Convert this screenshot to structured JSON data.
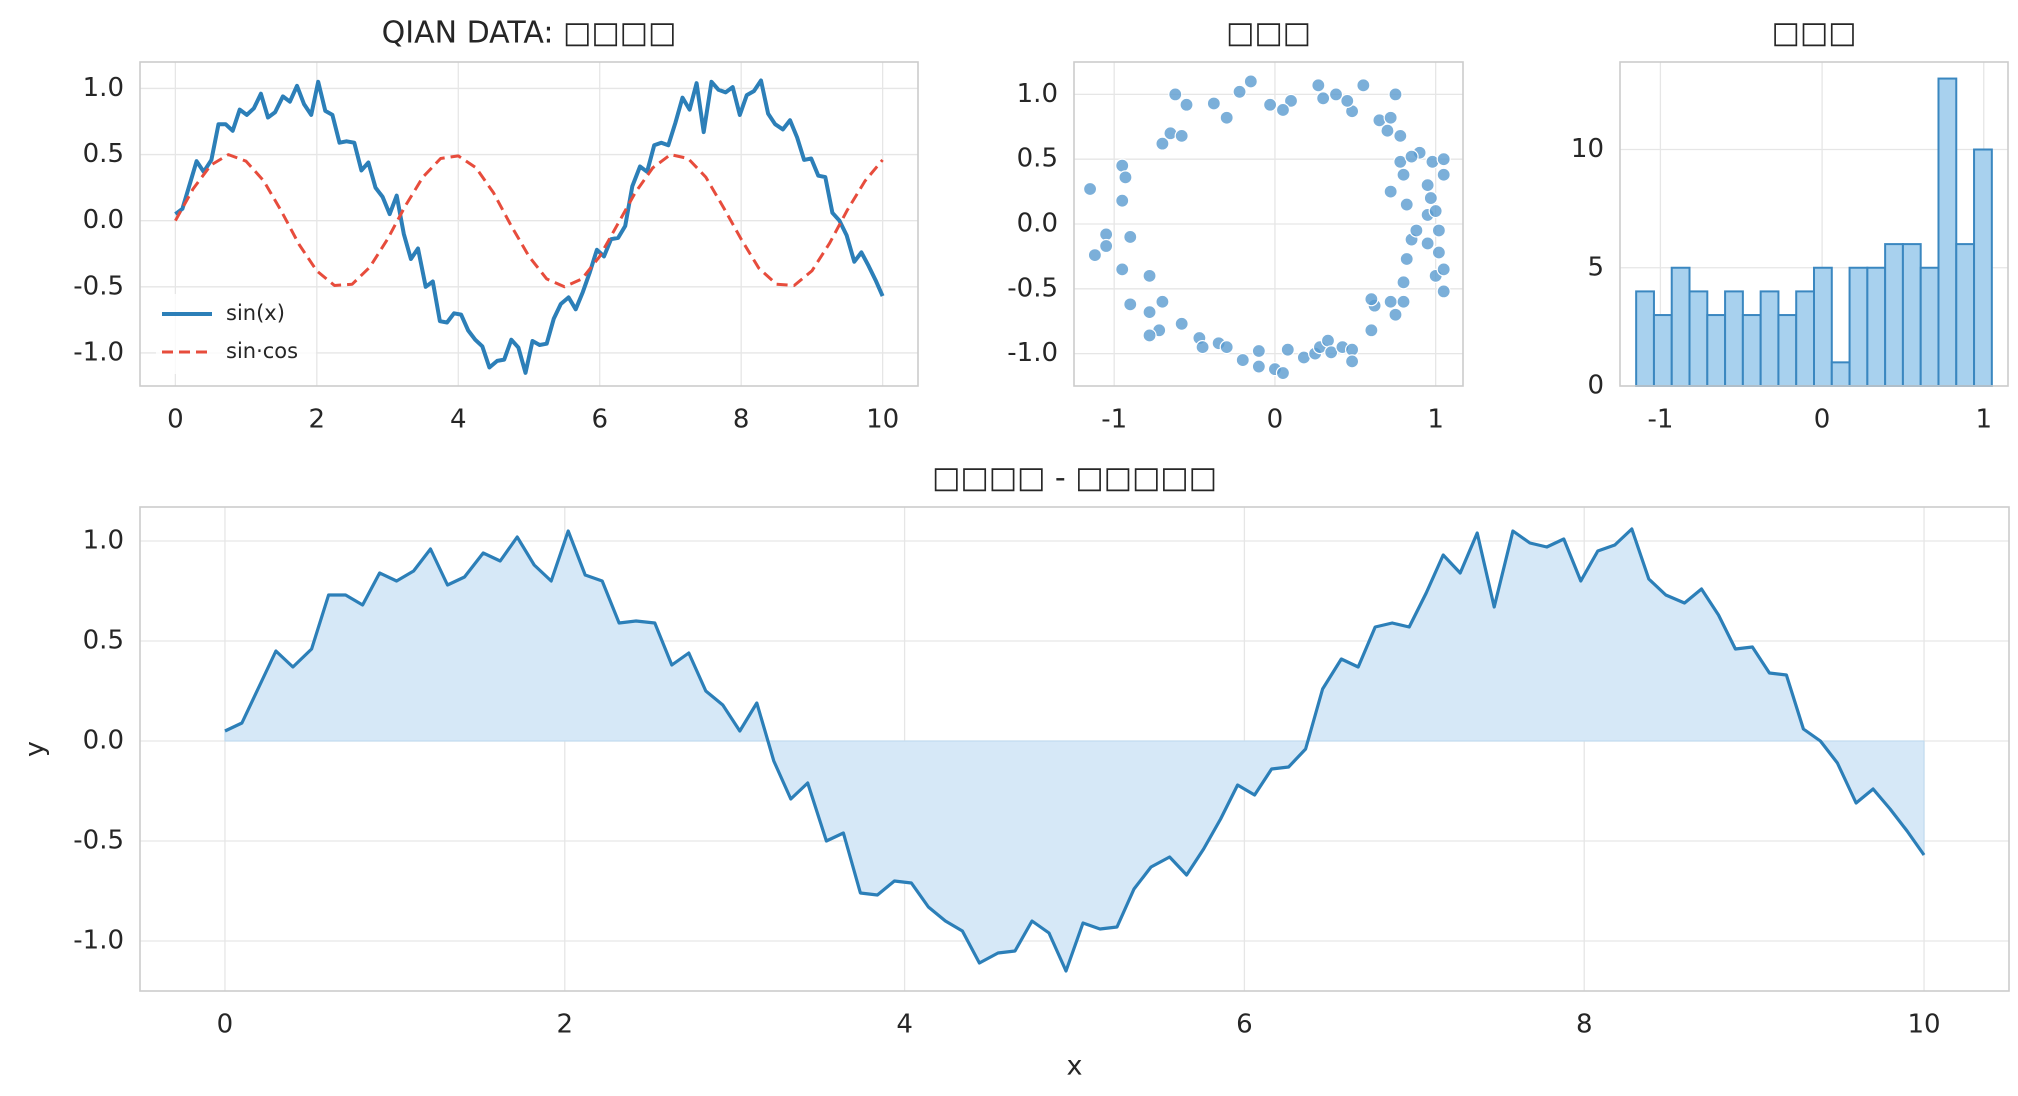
{
  "chart_data": [
    {
      "type": "line",
      "title": "QIAN DATA: □□□□",
      "legend": "lower left",
      "x": [
        0,
        0.1,
        0.2,
        0.3,
        0.4,
        0.51,
        0.61,
        0.71,
        0.81,
        0.91,
        1.01,
        1.11,
        1.21,
        1.31,
        1.41,
        1.52,
        1.62,
        1.72,
        1.82,
        1.92,
        2.02,
        2.12,
        2.22,
        2.32,
        2.42,
        2.53,
        2.63,
        2.73,
        2.83,
        2.93,
        3.03,
        3.13,
        3.23,
        3.33,
        3.43,
        3.54,
        3.64,
        3.74,
        3.84,
        3.94,
        4.04,
        4.14,
        4.24,
        4.34,
        4.44,
        4.55,
        4.65,
        4.75,
        4.85,
        4.95,
        5.05,
        5.15,
        5.25,
        5.35,
        5.45,
        5.56,
        5.66,
        5.76,
        5.86,
        5.96,
        6.06,
        6.16,
        6.26,
        6.36,
        6.46,
        6.57,
        6.67,
        6.77,
        6.87,
        6.97,
        7.07,
        7.17,
        7.27,
        7.37,
        7.47,
        7.58,
        7.68,
        7.78,
        7.88,
        7.98,
        8.08,
        8.18,
        8.28,
        8.38,
        8.48,
        8.59,
        8.69,
        8.79,
        8.89,
        8.99,
        9.09,
        9.19,
        9.29,
        9.39,
        9.49,
        9.6,
        9.7,
        9.8,
        9.9,
        10.0
      ],
      "series": [
        {
          "name": "sin(x)",
          "color": "#2c7fb8",
          "style": "solid",
          "values": [
            0.05,
            0.09,
            0.27,
            0.45,
            0.37,
            0.46,
            0.73,
            0.73,
            0.68,
            0.84,
            0.8,
            0.85,
            0.96,
            0.78,
            0.82,
            0.94,
            0.9,
            1.02,
            0.88,
            0.8,
            1.05,
            0.83,
            0.8,
            0.59,
            0.6,
            0.59,
            0.38,
            0.44,
            0.25,
            0.18,
            0.05,
            0.19,
            -0.1,
            -0.29,
            -0.21,
            -0.5,
            -0.46,
            -0.76,
            -0.77,
            -0.7,
            -0.71,
            -0.83,
            -0.9,
            -0.95,
            -1.11,
            -1.06,
            -1.05,
            -0.9,
            -0.96,
            -1.15,
            -0.91,
            -0.94,
            -0.93,
            -0.74,
            -0.63,
            -0.58,
            -0.67,
            -0.54,
            -0.39,
            -0.22,
            -0.27,
            -0.14,
            -0.13,
            -0.04,
            0.26,
            0.41,
            0.37,
            0.57,
            0.59,
            0.57,
            0.74,
            0.93,
            0.84,
            1.04,
            0.67,
            1.05,
            0.99,
            0.97,
            1.01,
            0.8,
            0.95,
            0.98,
            1.06,
            0.81,
            0.73,
            0.69,
            0.76,
            0.63,
            0.46,
            0.47,
            0.34,
            0.33,
            0.06,
            0.0,
            -0.11,
            -0.31,
            -0.24,
            -0.34,
            -0.45,
            -0.57
          ]
        },
        {
          "name": "sin·cos",
          "color": "#e74c3c",
          "style": "dashed",
          "x": [
            0,
            0.25,
            0.5,
            0.75,
            1,
            1.25,
            1.5,
            1.75,
            2,
            2.25,
            2.5,
            2.75,
            3,
            3.25,
            3.5,
            3.75,
            4,
            4.25,
            4.5,
            4.75,
            5,
            5.25,
            5.5,
            5.75,
            6,
            6.25,
            6.5,
            6.75,
            7,
            7.25,
            7.5,
            7.75,
            8,
            8.25,
            8.5,
            8.75,
            9,
            9.25,
            9.5,
            9.75,
            10
          ],
          "values": [
            0,
            0.24,
            0.42,
            0.5,
            0.45,
            0.3,
            0.07,
            -0.18,
            -0.38,
            -0.49,
            -0.48,
            -0.35,
            -0.14,
            0.11,
            0.33,
            0.47,
            0.49,
            0.4,
            0.21,
            -0.04,
            -0.27,
            -0.44,
            -0.5,
            -0.44,
            -0.27,
            -0.03,
            0.21,
            0.4,
            0.5,
            0.47,
            0.33,
            0.1,
            -0.14,
            -0.36,
            -0.48,
            -0.49,
            -0.38,
            -0.17,
            0.08,
            0.3,
            0.46
          ]
        }
      ],
      "xlim": [
        -0.5,
        10.5
      ],
      "xticks": [
        0,
        2,
        4,
        6,
        8,
        10
      ],
      "ylim": [
        -1.25,
        1.2
      ],
      "yticks": [
        {
          "value": -1,
          "label": "-1.0"
        },
        {
          "value": -0.5,
          "label": "-0.5"
        },
        {
          "value": 0,
          "label": "0.0"
        },
        {
          "value": 0.5,
          "label": "0.5"
        },
        {
          "value": 1,
          "label": "1.0"
        }
      ],
      "grid": true
    },
    {
      "type": "scatter",
      "title": "□□□",
      "color": "#5a9bd0",
      "x": [
        -1.15,
        -0.95,
        -0.93,
        -0.95,
        -1.05,
        -1.05,
        -1.12,
        -0.9,
        -0.95,
        -0.9,
        -0.78,
        -0.78,
        -0.7,
        -0.72,
        -0.78,
        -0.58,
        -0.47,
        -0.45,
        -0.35,
        -0.3,
        -0.2,
        -0.1,
        -0.1,
        0,
        0.05,
        0.08,
        0.18,
        0.25,
        0.28,
        0.33,
        0.35,
        0.42,
        0.48,
        0.48,
        0.6,
        0.62,
        0.6,
        0.72,
        0.75,
        0.8,
        0.8,
        0.82,
        0.85,
        0.88,
        0.95,
        1.02,
        1.0,
        1.05,
        1.05,
        1.02,
        0.95,
        0.97,
        1.0,
        0.82,
        0.8,
        0.72,
        0.78,
        0.78,
        0.7,
        0.65,
        0.72,
        0.75,
        0.55,
        0.48,
        0.45,
        0.38,
        0.3,
        0.27,
        0.1,
        0.05,
        -0.03,
        -0.15,
        -0.22,
        -0.3,
        -0.38,
        -0.55,
        -0.62,
        -0.65,
        -0.58,
        -0.7,
        0.9,
        0.98,
        1.05,
        1.05,
        0.85,
        0.95
      ],
      "values": [
        0.27,
        0.45,
        0.36,
        0.18,
        -0.08,
        -0.17,
        -0.24,
        -0.1,
        -0.35,
        -0.62,
        -0.4,
        -0.68,
        -0.6,
        -0.82,
        -0.86,
        -0.77,
        -0.88,
        -0.95,
        -0.92,
        -0.95,
        -1.05,
        -0.98,
        -1.1,
        -1.12,
        -1.15,
        -0.97,
        -1.03,
        -1.0,
        -0.95,
        -0.9,
        -0.99,
        -0.95,
        -0.97,
        -1.06,
        -0.82,
        -0.63,
        -0.58,
        -0.6,
        -0.7,
        -0.6,
        -0.45,
        -0.27,
        -0.12,
        -0.05,
        -0.15,
        -0.05,
        -0.4,
        -0.35,
        -0.52,
        -0.22,
        0.07,
        0.2,
        0.1,
        0.15,
        0.38,
        0.25,
        0.48,
        0.68,
        0.72,
        0.8,
        0.82,
        1.0,
        1.07,
        0.87,
        0.95,
        1.0,
        0.97,
        1.07,
        0.95,
        0.88,
        0.92,
        1.1,
        1.02,
        0.82,
        0.93,
        0.92,
        1.0,
        0.7,
        0.68,
        0.62,
        0.55,
        0.48,
        0.38,
        0.5,
        0.52,
        0.3
      ],
      "xlim": [
        -1.25,
        1.17
      ],
      "xticks": [
        -1,
        0,
        1
      ],
      "ylim": [
        -1.25,
        1.25
      ],
      "yticks": [
        {
          "value": -1,
          "label": "-1.0"
        },
        {
          "value": -0.5,
          "label": "-0.5"
        },
        {
          "value": 0,
          "label": "0.0"
        },
        {
          "value": 0.5,
          "label": "0.5"
        },
        {
          "value": 1,
          "label": "1.0"
        }
      ],
      "grid": true
    },
    {
      "type": "histogram",
      "title": "□□□",
      "color": "#a8d1ee",
      "edgecolor": "#3a87c0",
      "bins": [
        -1.15,
        -1.04,
        -0.93,
        -0.82,
        -0.71,
        -0.6,
        -0.49,
        -0.38,
        -0.27,
        -0.16,
        -0.05,
        0.06,
        0.17,
        0.28,
        0.39,
        0.5,
        0.61,
        0.72,
        0.83,
        0.94,
        1.05
      ],
      "values": [
        4,
        3,
        5,
        4,
        3,
        4,
        3,
        4,
        3,
        4,
        5,
        1,
        5,
        5,
        6,
        6,
        5,
        13,
        6,
        10
      ],
      "xlim": [
        -1.25,
        1.15
      ],
      "xticks": [
        -1,
        0,
        1
      ],
      "ylim": [
        0,
        13.7
      ],
      "yticks": [
        0,
        5,
        10
      ],
      "grid": true
    },
    {
      "type": "area",
      "title": "□□□□ - □□□□□",
      "xlabel": "x",
      "ylabel": "y",
      "color": "#2c7fb8",
      "fill": "#d6e8f7",
      "x": [
        0,
        0.1,
        0.2,
        0.3,
        0.4,
        0.51,
        0.61,
        0.71,
        0.81,
        0.91,
        1.01,
        1.11,
        1.21,
        1.31,
        1.41,
        1.52,
        1.62,
        1.72,
        1.82,
        1.92,
        2.02,
        2.12,
        2.22,
        2.32,
        2.42,
        2.53,
        2.63,
        2.73,
        2.83,
        2.93,
        3.03,
        3.13,
        3.23,
        3.33,
        3.43,
        3.54,
        3.64,
        3.74,
        3.84,
        3.94,
        4.04,
        4.14,
        4.24,
        4.34,
        4.44,
        4.55,
        4.65,
        4.75,
        4.85,
        4.95,
        5.05,
        5.15,
        5.25,
        5.35,
        5.45,
        5.56,
        5.66,
        5.76,
        5.86,
        5.96,
        6.06,
        6.16,
        6.26,
        6.36,
        6.46,
        6.57,
        6.67,
        6.77,
        6.87,
        6.97,
        7.07,
        7.17,
        7.27,
        7.37,
        7.47,
        7.58,
        7.68,
        7.78,
        7.88,
        7.98,
        8.08,
        8.18,
        8.28,
        8.38,
        8.48,
        8.59,
        8.69,
        8.79,
        8.89,
        8.99,
        9.09,
        9.19,
        9.29,
        9.39,
        9.49,
        9.6,
        9.7,
        9.8,
        9.9,
        10.0
      ],
      "values": [
        0.05,
        0.09,
        0.27,
        0.45,
        0.37,
        0.46,
        0.73,
        0.73,
        0.68,
        0.84,
        0.8,
        0.85,
        0.96,
        0.78,
        0.82,
        0.94,
        0.9,
        1.02,
        0.88,
        0.8,
        1.05,
        0.83,
        0.8,
        0.59,
        0.6,
        0.59,
        0.38,
        0.44,
        0.25,
        0.18,
        0.05,
        0.19,
        -0.1,
        -0.29,
        -0.21,
        -0.5,
        -0.46,
        -0.76,
        -0.77,
        -0.7,
        -0.71,
        -0.83,
        -0.9,
        -0.95,
        -1.11,
        -1.06,
        -1.05,
        -0.9,
        -0.96,
        -1.15,
        -0.91,
        -0.94,
        -0.93,
        -0.74,
        -0.63,
        -0.58,
        -0.67,
        -0.54,
        -0.39,
        -0.22,
        -0.27,
        -0.14,
        -0.13,
        -0.04,
        0.26,
        0.41,
        0.37,
        0.57,
        0.59,
        0.57,
        0.74,
        0.93,
        0.84,
        1.04,
        0.67,
        1.05,
        0.99,
        0.97,
        1.01,
        0.8,
        0.95,
        0.98,
        1.06,
        0.81,
        0.73,
        0.69,
        0.76,
        0.63,
        0.46,
        0.47,
        0.34,
        0.33,
        0.06,
        0.0,
        -0.11,
        -0.31,
        -0.24,
        -0.34,
        -0.45,
        -0.57
      ],
      "xlim": [
        -0.5,
        10.5
      ],
      "xticks": [
        0,
        2,
        4,
        6,
        8,
        10
      ],
      "ylim": [
        -1.25,
        1.17
      ],
      "yticks": [
        {
          "value": -1,
          "label": "-1.0"
        },
        {
          "value": -0.5,
          "label": "-0.5"
        },
        {
          "value": 0,
          "label": "0.0"
        },
        {
          "value": 0.5,
          "label": "0.5"
        },
        {
          "value": 1,
          "label": "1.0"
        }
      ],
      "grid": true
    }
  ]
}
